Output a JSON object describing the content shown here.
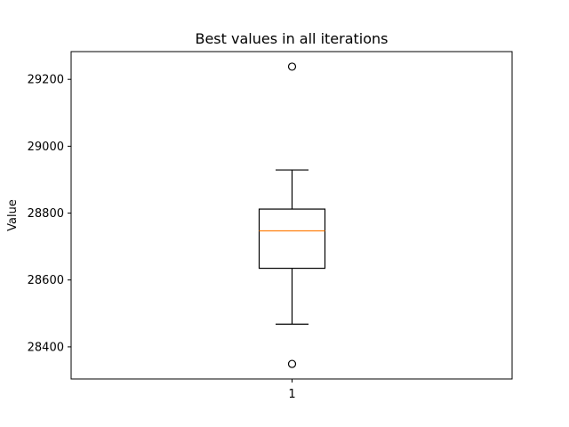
{
  "chart_data": {
    "type": "boxplot",
    "title": "Best values in all iterations",
    "xlabel": "",
    "ylabel": "Value",
    "categories": [
      "1"
    ],
    "boxes": [
      {
        "category": "1",
        "whisker_low": 28468,
        "q1": 28635,
        "median": 28747,
        "q3": 28812,
        "whisker_high": 28929,
        "outliers": [
          29238,
          28349
        ]
      }
    ],
    "yticks": [
      28400,
      28600,
      28800,
      29000,
      29200
    ],
    "ylim": [
      28304,
      28283
    ],
    "grid": false,
    "colors": {
      "box": "#000000",
      "median": "#ff7f0e",
      "outlier": "#000000"
    }
  }
}
